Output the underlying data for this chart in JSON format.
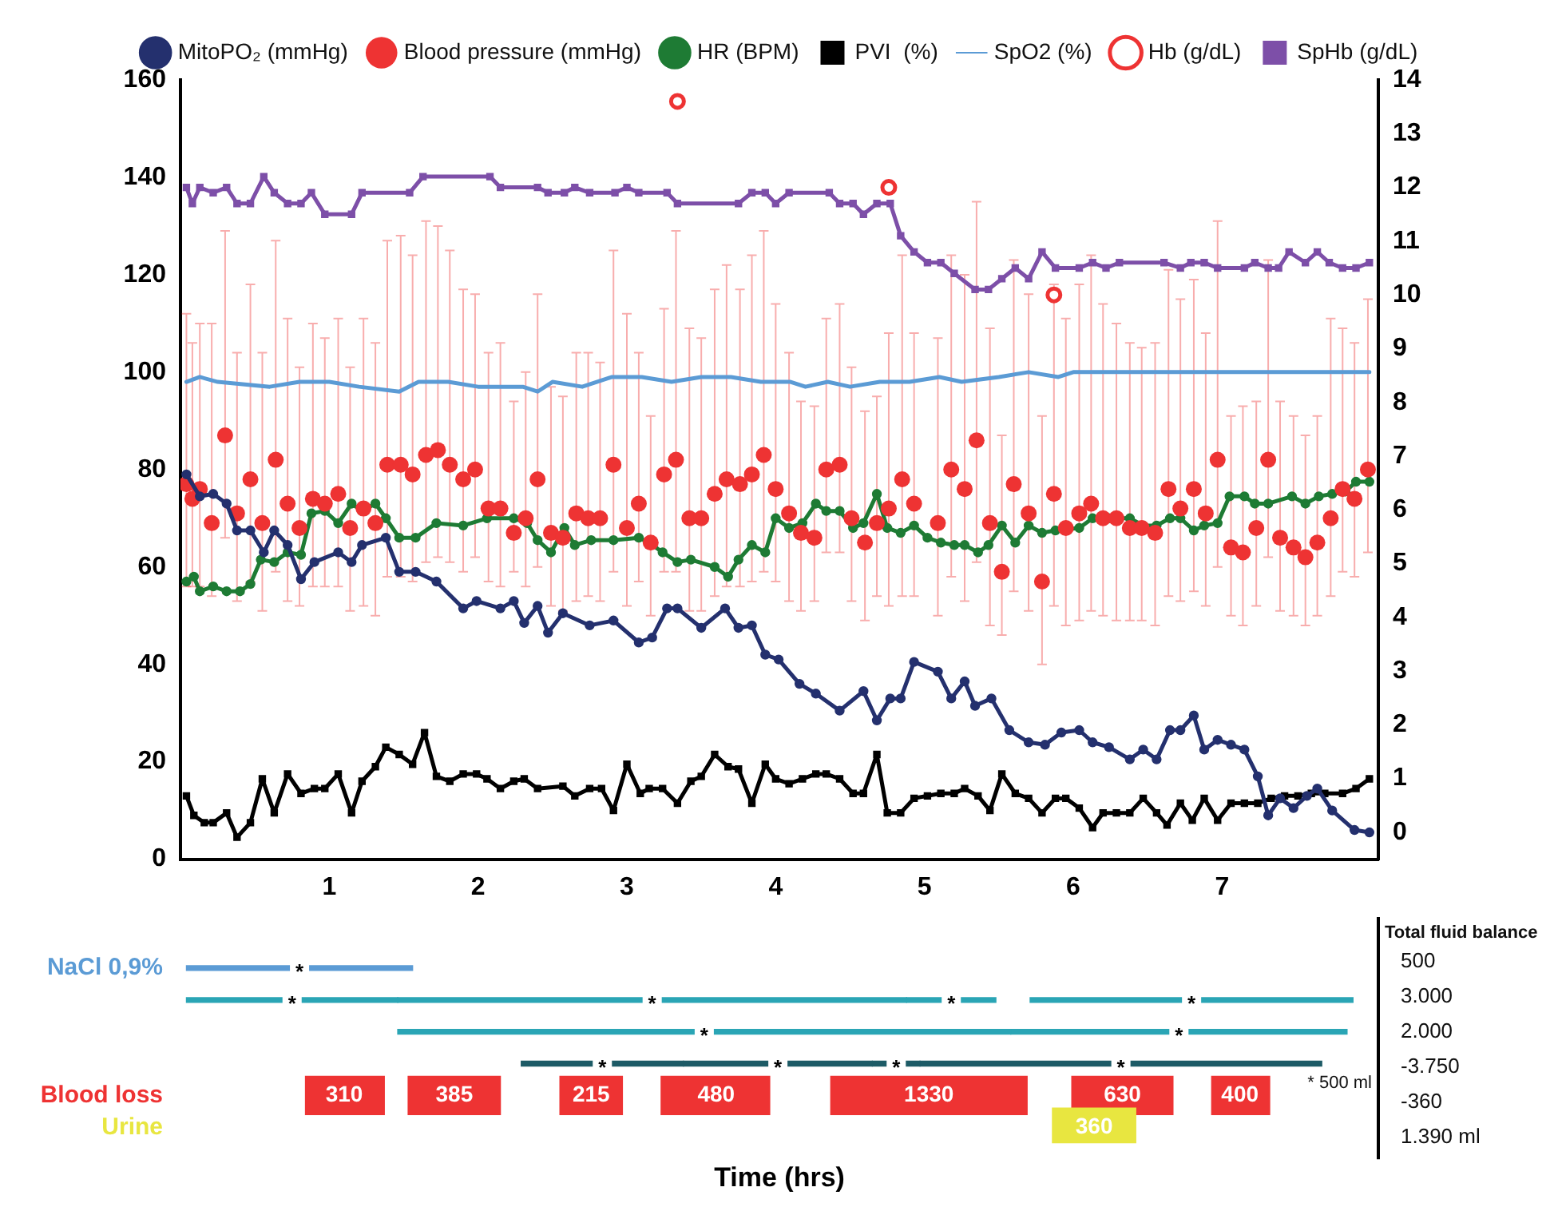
{
  "chart_data": [
    {
      "type": "line",
      "xlim": [
        0,
        8.05
      ],
      "xticks": [
        1,
        2,
        3,
        4,
        5,
        6,
        7
      ],
      "ylim": [
        0,
        160
      ],
      "yticks": [
        0,
        20,
        40,
        60,
        80,
        100,
        120,
        140,
        160
      ],
      "y2lim": [
        -0.5,
        14
      ],
      "y2ticks": [
        0,
        1,
        2,
        3,
        4,
        5,
        6,
        7,
        8,
        9,
        10,
        11,
        12,
        13,
        14
      ],
      "grid": false,
      "legend": "top",
      "series": [
        {
          "name": "MitoPO₂ (mmHg)",
          "type": "line",
          "color": "#24306e",
          "marker": "circle",
          "x": [
            0.04,
            0.13,
            0.22,
            0.31,
            0.38,
            0.47,
            0.56,
            0.63,
            0.72,
            0.81,
            0.9,
            1.06,
            1.15,
            1.22,
            1.38,
            1.47,
            1.58,
            1.72,
            1.9,
            1.99,
            2.15,
            2.24,
            2.31,
            2.4,
            2.47,
            2.57,
            2.75,
            2.91,
            3.08,
            3.17,
            3.27,
            3.34,
            3.5,
            3.66,
            3.75,
            3.84,
            3.93,
            4.02,
            4.16,
            4.27,
            4.43,
            4.59,
            4.68,
            4.77,
            4.84,
            4.93,
            5.09,
            5.18,
            5.27,
            5.34,
            5.45,
            5.57,
            5.7,
            5.81,
            5.92,
            6.04,
            6.13,
            6.24,
            6.38,
            6.47,
            6.56,
            6.65,
            6.72,
            6.81,
            6.88,
            6.97,
            7.06,
            7.15,
            7.24,
            7.31,
            7.39,
            7.48,
            7.57,
            7.64,
            7.74,
            7.89,
            7.99
          ],
          "values": [
            79,
            74.5,
            75,
            73,
            67.5,
            67.5,
            63,
            67.5,
            64.5,
            57.5,
            61,
            63,
            61,
            64.5,
            66,
            59,
            59,
            57,
            51.5,
            53,
            51.5,
            53,
            48.5,
            52,
            46.5,
            50.5,
            48,
            49,
            44.5,
            45.5,
            51.5,
            51.5,
            47.5,
            51.5,
            47.5,
            48,
            42,
            41,
            36,
            34,
            30.5,
            34.5,
            28.5,
            33,
            33,
            40.5,
            38.5,
            33,
            36.5,
            31.5,
            33,
            26.5,
            24,
            23.5,
            26,
            26.5,
            24,
            23,
            20.5,
            22.5,
            20.5,
            26.5,
            26.5,
            29.5,
            22.5,
            24.5,
            23.5,
            22.5,
            17,
            9,
            12.5,
            10.5,
            13,
            14.5,
            10,
            6,
            5.5
          ]
        },
        {
          "name": "Blood pressure (mmHg)",
          "type": "scatter",
          "color": "#ee3333",
          "marker": "circle",
          "x": [
            0.04,
            0.08,
            0.13,
            0.21,
            0.3,
            0.38,
            0.47,
            0.55,
            0.64,
            0.72,
            0.8,
            0.89,
            0.97,
            1.06,
            1.14,
            1.23,
            1.31,
            1.39,
            1.48,
            1.56,
            1.65,
            1.73,
            1.81,
            1.9,
            1.98,
            2.07,
            2.15,
            2.24,
            2.32,
            2.4,
            2.49,
            2.57,
            2.66,
            2.74,
            2.82,
            2.91,
            3.0,
            3.08,
            3.16,
            3.25,
            3.33,
            3.42,
            3.5,
            3.59,
            3.67,
            3.76,
            3.84,
            3.92,
            4.0,
            4.09,
            4.17,
            4.26,
            4.34,
            4.43,
            4.51,
            4.6,
            4.68,
            4.76,
            4.85,
            4.93,
            5.09,
            5.18,
            5.27,
            5.35,
            5.44,
            5.52,
            5.6,
            5.7,
            5.79,
            5.87,
            5.95,
            6.04,
            6.12,
            6.2,
            6.29,
            6.38,
            6.46,
            6.55,
            6.64,
            6.72,
            6.81,
            6.89,
            6.97,
            7.06,
            7.14,
            7.23,
            7.31,
            7.39,
            7.48,
            7.56,
            7.64,
            7.73,
            7.81,
            7.89,
            7.98
          ],
          "values": [
            77,
            74,
            76,
            69,
            87,
            71,
            78,
            69,
            82,
            73,
            68,
            74,
            73,
            75,
            68,
            72,
            69,
            81,
            81,
            79,
            83,
            84,
            81,
            78,
            80,
            72,
            72,
            67,
            70,
            78,
            67,
            66,
            71,
            70,
            70,
            81,
            68,
            73,
            65,
            79,
            82,
            70,
            70,
            75,
            78,
            77,
            79,
            83,
            76,
            71,
            67,
            66,
            80,
            81,
            70,
            65,
            69,
            72,
            78,
            73,
            69,
            80,
            76,
            86,
            69,
            59,
            77,
            71,
            57,
            75,
            68,
            71,
            73,
            70,
            70,
            68,
            68,
            67,
            76,
            72,
            76,
            71,
            82,
            64,
            63,
            68,
            82,
            66,
            64,
            62,
            65,
            70,
            76,
            74,
            80
          ],
          "errors": [
            [
              56,
              112
            ],
            [
              56,
              106
            ],
            [
              56,
              110
            ],
            [
              54,
              110
            ],
            [
              66,
              129
            ],
            [
              53,
              104
            ],
            [
              57,
              118
            ],
            [
              51,
              104
            ],
            [
              59,
              127
            ],
            [
              53,
              111
            ],
            [
              52,
              101
            ],
            [
              56,
              110
            ],
            [
              56,
              107
            ],
            [
              56,
              111
            ],
            [
              51,
              101
            ],
            [
              52,
              111
            ],
            [
              50,
              106
            ],
            [
              58,
              127
            ],
            [
              58,
              128
            ],
            [
              57,
              124
            ],
            [
              61,
              131
            ],
            [
              62,
              130
            ],
            [
              61,
              125
            ],
            [
              59,
              117
            ],
            [
              62,
              116
            ],
            [
              57,
              104
            ],
            [
              56,
              106
            ],
            [
              59,
              94
            ],
            [
              56,
              100
            ],
            [
              60,
              116
            ],
            [
              52,
              97
            ],
            [
              51,
              95
            ],
            [
              53,
              104
            ],
            [
              54,
              104
            ],
            [
              53,
              102
            ],
            [
              59,
              125
            ],
            [
              52,
              112
            ],
            [
              57,
              104
            ],
            [
              50,
              91
            ],
            [
              59,
              113
            ],
            [
              59,
              129
            ],
            [
              51,
              109
            ],
            [
              51,
              107
            ],
            [
              54,
              117
            ],
            [
              56,
              122
            ],
            [
              56,
              117
            ],
            [
              57,
              124
            ],
            [
              59,
              129
            ],
            [
              57,
              114
            ],
            [
              53,
              104
            ],
            [
              51,
              94
            ],
            [
              53,
              93
            ],
            [
              63,
              111
            ],
            [
              63,
              114
            ],
            [
              53,
              101
            ],
            [
              49,
              92
            ],
            [
              54,
              95
            ],
            [
              52,
              108
            ],
            [
              54,
              124
            ],
            [
              54,
              108
            ],
            [
              50,
              107
            ],
            [
              58,
              124
            ],
            [
              53,
              120
            ],
            [
              61,
              135
            ],
            [
              48,
              109
            ],
            [
              46,
              87
            ],
            [
              55,
              123
            ],
            [
              51,
              116
            ],
            [
              40,
              91
            ],
            [
              52,
              118
            ],
            [
              48,
              111
            ],
            [
              49,
              118
            ],
            [
              51,
              124
            ],
            [
              50,
              114
            ],
            [
              49,
              110
            ],
            [
              49,
              106
            ],
            [
              49,
              105
            ],
            [
              48,
              106
            ],
            [
              54,
              121
            ],
            [
              53,
              115
            ],
            [
              55,
              119
            ],
            [
              52,
              108
            ],
            [
              60,
              131
            ],
            [
              50,
              91
            ],
            [
              48,
              93
            ],
            [
              52,
              94
            ],
            [
              62,
              123
            ],
            [
              51,
              94
            ],
            [
              50,
              91
            ],
            [
              48,
              87
            ],
            [
              50,
              91
            ],
            [
              54,
              111
            ],
            [
              59,
              109
            ],
            [
              58,
              106
            ],
            [
              63,
              115
            ]
          ]
        },
        {
          "name": "HR (BPM)",
          "type": "line",
          "color": "#1e7b34",
          "marker": "circle",
          "x": [
            0.04,
            0.09,
            0.13,
            0.22,
            0.31,
            0.4,
            0.47,
            0.54,
            0.63,
            0.72,
            0.81,
            0.88,
            0.97,
            1.06,
            1.15,
            1.22,
            1.31,
            1.38,
            1.47,
            1.58,
            1.72,
            1.9,
            2.06,
            2.24,
            2.33,
            2.4,
            2.49,
            2.58,
            2.65,
            2.76,
            2.91,
            3.08,
            3.15,
            3.24,
            3.34,
            3.43,
            3.59,
            3.68,
            3.75,
            3.84,
            3.93,
            4.0,
            4.09,
            4.18,
            4.27,
            4.34,
            4.43,
            4.52,
            4.59,
            4.68,
            4.75,
            4.84,
            4.93,
            5.02,
            5.11,
            5.2,
            5.27,
            5.36,
            5.43,
            5.52,
            5.61,
            5.7,
            5.79,
            5.88,
            6.04,
            6.13,
            6.24,
            6.38,
            6.47,
            6.56,
            6.65,
            6.72,
            6.81,
            6.88,
            6.97,
            7.05,
            7.15,
            7.22,
            7.31,
            7.47,
            7.56,
            7.65,
            7.74,
            7.83,
            7.9,
            7.99
          ],
          "values": [
            57,
            58,
            55,
            56,
            55,
            55,
            56.5,
            61.5,
            61,
            63,
            62.5,
            71,
            71.5,
            69,
            73,
            71.5,
            73,
            70,
            66,
            66,
            69,
            68.5,
            70,
            70,
            69,
            65.5,
            63,
            68,
            64.5,
            65.5,
            65.5,
            66,
            65,
            63,
            61,
            61.5,
            60,
            58,
            61.5,
            64.5,
            63,
            70,
            68,
            69,
            73,
            71.5,
            71.5,
            68,
            69,
            75,
            68,
            67,
            68.5,
            66,
            65,
            64.5,
            64.5,
            63,
            64.5,
            68.5,
            65,
            68.5,
            67,
            67.5,
            68,
            70,
            70,
            70,
            68.5,
            68.5,
            70,
            70,
            67.5,
            68.5,
            69,
            74.5,
            74.5,
            73,
            73,
            74.5,
            73,
            74.5,
            75,
            75.5,
            77.5,
            77.5
          ]
        },
        {
          "name": "PVI  (%)",
          "type": "line",
          "color": "#000000",
          "marker": "square",
          "x": [
            0.04,
            0.09,
            0.16,
            0.22,
            0.31,
            0.38,
            0.47,
            0.55,
            0.63,
            0.72,
            0.81,
            0.9,
            0.97,
            1.06,
            1.15,
            1.22,
            1.31,
            1.38,
            1.47,
            1.56,
            1.64,
            1.72,
            1.81,
            1.9,
            1.99,
            2.06,
            2.15,
            2.24,
            2.31,
            2.4,
            2.57,
            2.65,
            2.75,
            2.83,
            2.91,
            3.0,
            3.09,
            3.15,
            3.24,
            3.34,
            3.43,
            3.5,
            3.59,
            3.68,
            3.75,
            3.84,
            3.93,
            4.0,
            4.09,
            4.18,
            4.27,
            4.34,
            4.43,
            4.52,
            4.59,
            4.68,
            4.75,
            4.84,
            4.93,
            5.02,
            5.11,
            5.2,
            5.27,
            5.36,
            5.44,
            5.52,
            5.61,
            5.7,
            5.79,
            5.88,
            5.95,
            6.04,
            6.13,
            6.2,
            6.29,
            6.38,
            6.47,
            6.56,
            6.63,
            6.72,
            6.8,
            6.88,
            6.97,
            7.06,
            7.15,
            7.24,
            7.33,
            7.42,
            7.51,
            7.6,
            7.69,
            7.81,
            7.9,
            7.99
          ],
          "values": [
            13,
            9,
            7.5,
            7.5,
            9.5,
            4.5,
            7.5,
            16.5,
            9.5,
            17.5,
            13.5,
            14.5,
            14.5,
            17.5,
            9.5,
            16,
            19,
            23,
            21.5,
            19.5,
            26,
            17,
            16,
            17.5,
            17.5,
            16.5,
            14.5,
            16,
            16.5,
            14.5,
            15,
            13,
            14.5,
            14.5,
            10,
            19.5,
            13.5,
            14.5,
            14.5,
            11.5,
            16,
            17,
            21.5,
            19,
            18.5,
            11.5,
            19.5,
            16.5,
            15.5,
            16.5,
            17.5,
            17.5,
            16.5,
            13.5,
            13.5,
            21.5,
            9.5,
            9.5,
            12.5,
            13,
            13.5,
            13.5,
            14.5,
            13,
            10,
            17.5,
            13.5,
            12.5,
            9.5,
            12.5,
            12.5,
            10.5,
            6.5,
            9.5,
            9.5,
            9.5,
            12.5,
            9.5,
            7,
            11.5,
            8,
            12.5,
            8,
            11.5,
            11.5,
            11.5,
            12.5,
            13,
            13,
            13.5,
            13.5,
            13.5,
            14.5,
            16.5
          ]
        },
        {
          "name": "SpO2 (%)",
          "type": "line",
          "color": "#5b9bd5",
          "marker": "none",
          "x": [
            0.04,
            0.13,
            0.25,
            0.6,
            0.8,
            1.0,
            1.2,
            1.47,
            1.6,
            1.8,
            2.0,
            2.3,
            2.4,
            2.5,
            2.7,
            2.9,
            3.1,
            3.3,
            3.5,
            3.7,
            3.9,
            4.1,
            4.2,
            4.35,
            4.5,
            4.7,
            4.9,
            5.1,
            5.25,
            5.5,
            5.7,
            5.9,
            6.0,
            6.2,
            7.99
          ],
          "values": [
            98,
            99,
            98,
            97,
            98,
            98,
            97,
            96,
            98,
            98,
            97,
            97,
            96,
            98,
            97,
            99,
            99,
            98,
            99,
            99,
            98,
            98,
            97,
            98,
            97,
            98,
            98,
            99,
            98,
            99,
            100,
            99,
            100,
            100,
            100
          ]
        },
        {
          "name": "Hb (g/dL)",
          "type": "scatter",
          "axis": "y2",
          "color": "#ee3333",
          "marker": "circle",
          "x": [
            3.34,
            4.76,
            5.87
          ],
          "values": [
            13.6,
            12.0,
            10.0
          ]
        },
        {
          "name": "SpHb (g/dL)",
          "type": "line",
          "axis": "y2",
          "color": "#7d4fa8",
          "marker": "square",
          "x": [
            0.04,
            0.08,
            0.13,
            0.22,
            0.31,
            0.38,
            0.47,
            0.56,
            0.63,
            0.72,
            0.81,
            0.88,
            0.97,
            1.15,
            1.22,
            1.54,
            1.63,
            2.08,
            2.15,
            2.4,
            2.47,
            2.58,
            2.65,
            2.75,
            2.92,
            3.0,
            3.08,
            3.27,
            3.34,
            3.75,
            3.84,
            3.93,
            4.0,
            4.09,
            4.36,
            4.43,
            4.52,
            4.59,
            4.68,
            4.77,
            4.84,
            4.93,
            5.02,
            5.11,
            5.2,
            5.34,
            5.43,
            5.52,
            5.61,
            5.7,
            5.79,
            5.88,
            6.04,
            6.13,
            6.22,
            6.31,
            6.61,
            6.72,
            6.79,
            6.88,
            6.97,
            7.15,
            7.22,
            7.31,
            7.38,
            7.45,
            7.56,
            7.64,
            7.72,
            7.81,
            7.9,
            7.99
          ],
          "values": [
            12.0,
            11.7,
            12.0,
            11.9,
            12.0,
            11.7,
            11.7,
            12.2,
            11.9,
            11.7,
            11.7,
            11.9,
            11.5,
            11.5,
            11.9,
            11.9,
            12.2,
            12.2,
            12.0,
            12.0,
            11.9,
            11.9,
            12.0,
            11.9,
            11.9,
            12.0,
            11.9,
            11.9,
            11.7,
            11.7,
            11.9,
            11.9,
            11.7,
            11.9,
            11.9,
            11.7,
            11.7,
            11.5,
            11.7,
            11.7,
            11.1,
            10.8,
            10.6,
            10.6,
            10.4,
            10.1,
            10.1,
            10.3,
            10.5,
            10.3,
            10.8,
            10.5,
            10.5,
            10.6,
            10.5,
            10.6,
            10.6,
            10.5,
            10.6,
            10.6,
            10.5,
            10.5,
            10.6,
            10.5,
            10.5,
            10.8,
            10.6,
            10.8,
            10.6,
            10.5,
            10.5,
            10.6
          ]
        }
      ]
    },
    {
      "type": "bar",
      "orientation": "horizontal",
      "xlabel": "Time (hrs)",
      "xlim": [
        0,
        8.05
      ],
      "tick_labels": "y",
      "legend": false,
      "categories": [
        "NaCl 0,9%",
        null,
        null,
        null,
        "Blood loss",
        "Urine"
      ],
      "annotations": [
        "Total fluid balance",
        "500",
        "3.000",
        "2.000",
        "-3.750",
        "-360",
        "1.390 ml",
        "* 500 ml",
        {
          "text": "310",
          "x": 1.1,
          "y": "Blood loss"
        },
        {
          "text": "385",
          "x": 1.84,
          "y": "Blood loss"
        },
        {
          "text": "215",
          "x": 2.76,
          "y": "Blood loss"
        },
        {
          "text": "480",
          "x": 3.6,
          "y": "Blood loss"
        },
        {
          "text": "1330",
          "x": 5.03,
          "y": "Blood loss"
        },
        {
          "text": "630",
          "x": 6.33,
          "y": "Blood loss"
        },
        {
          "text": "400",
          "x": 7.12,
          "y": "Blood loss"
        },
        {
          "text": "360",
          "x": 6.14,
          "y": "Urine"
        }
      ],
      "series": [
        {
          "line_style": "solid",
          "colors": [
            "#5b9bd5",
            "#2aa5b5",
            "#2aa5b5",
            "#1d5b66",
            null,
            null
          ],
          "base": [
            0.04,
            0.04,
            1.46,
            2.29,
            null,
            null
          ],
          "values": [
            1.52,
            1.42,
            4.12,
            1.09,
            null,
            null
          ],
          "value_labels": [
            "*",
            "*",
            "*",
            "*",
            null,
            null
          ]
        },
        {
          "line_style": "solid",
          "colors": [
            null,
            "#2aa5b5",
            "#2aa5b5",
            "#1d5b66",
            null,
            null
          ],
          "base": [
            null,
            1.46,
            5.58,
            3.38,
            null,
            null
          ],
          "values": [
            null,
            3.42,
            2.26,
            1.27,
            null,
            null
          ],
          "value_labels": [
            null,
            "*",
            "*",
            "*",
            null,
            null
          ]
        },
        {
          "line_style": "solid",
          "colors": [
            null,
            "#2aa5b5",
            null,
            "#1d5b66",
            null,
            null
          ],
          "base": [
            null,
            4.88,
            null,
            4.65,
            null,
            null
          ],
          "values": [
            null,
            0.6,
            null,
            0.32,
            null,
            null
          ],
          "value_labels": [
            null,
            "*",
            null,
            "*",
            null,
            null
          ]
        },
        {
          "line_style": "solid",
          "colors": [
            null,
            "#2aa5b5",
            null,
            "#1d5b66",
            null,
            null
          ],
          "base": [
            null,
            5.71,
            null,
            4.97,
            null,
            null
          ],
          "values": [
            null,
            2.17,
            null,
            2.7,
            null,
            null
          ],
          "value_labels": [
            null,
            "*",
            null,
            "*",
            null,
            null
          ]
        },
        {
          "colors": [
            null,
            null,
            null,
            null,
            "#ee3333",
            null
          ],
          "base": [
            null,
            null,
            null,
            null,
            0.84,
            null
          ],
          "values": [
            null,
            null,
            null,
            null,
            0.53,
            null
          ]
        },
        {
          "colors": [
            null,
            null,
            null,
            null,
            "#ee3333",
            null
          ],
          "base": [
            null,
            null,
            null,
            null,
            1.53,
            null
          ],
          "values": [
            null,
            null,
            null,
            null,
            0.62,
            null
          ]
        },
        {
          "colors": [
            null,
            null,
            null,
            null,
            "#ee3333",
            null
          ],
          "base": [
            null,
            null,
            null,
            null,
            2.55,
            null
          ],
          "values": [
            null,
            null,
            null,
            null,
            0.42,
            null
          ]
        },
        {
          "colors": [
            null,
            null,
            null,
            null,
            "#ee3333",
            null
          ],
          "base": [
            null,
            null,
            null,
            null,
            3.23,
            null
          ],
          "values": [
            null,
            null,
            null,
            null,
            0.73,
            null
          ]
        },
        {
          "colors": [
            null,
            null,
            null,
            null,
            "#ee3333",
            null
          ],
          "base": [
            null,
            null,
            null,
            null,
            4.37,
            null
          ],
          "values": [
            null,
            null,
            null,
            null,
            1.32,
            null
          ]
        },
        {
          "colors": [
            null,
            null,
            null,
            null,
            "#ee3333",
            "#e8e640"
          ],
          "base": [
            null,
            null,
            null,
            null,
            5.99,
            5.86
          ],
          "values": [
            null,
            null,
            null,
            null,
            0.68,
            0.56
          ]
        },
        {
          "colors": [
            null,
            null,
            null,
            null,
            "#ee3333",
            null
          ],
          "base": [
            null,
            null,
            null,
            null,
            6.93,
            null
          ],
          "values": [
            null,
            null,
            null,
            null,
            0.39,
            null
          ]
        }
      ]
    }
  ]
}
